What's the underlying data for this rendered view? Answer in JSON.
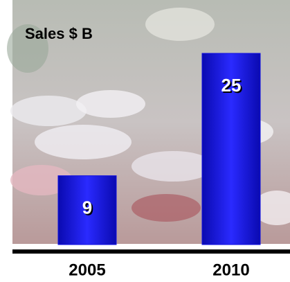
{
  "chart_data": {
    "type": "bar",
    "title": "Sales $ B",
    "categories": [
      "2005",
      "2010"
    ],
    "values": [
      9,
      25
    ],
    "color": "#1010e0"
  }
}
